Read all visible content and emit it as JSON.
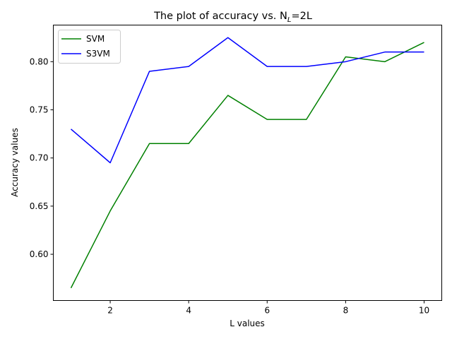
{
  "chart_data": {
    "type": "line",
    "title": "The plot of accuracy vs. N",
    "title_subscript": "L",
    "title_suffix": "=2L",
    "xlabel": "L values",
    "ylabel": "Accuracy values",
    "x": [
      1,
      2,
      3,
      4,
      5,
      6,
      7,
      8,
      9,
      10
    ],
    "xlim": [
      0.55,
      10.45
    ],
    "ylim": [
      0.552,
      0.838
    ],
    "xticks": [
      2,
      4,
      6,
      8,
      10
    ],
    "yticks": [
      0.6,
      0.65,
      0.7,
      0.75,
      0.8
    ],
    "xtick_labels": [
      "2",
      "4",
      "6",
      "8",
      "10"
    ],
    "ytick_labels": [
      "0.60",
      "0.65",
      "0.70",
      "0.75",
      "0.80"
    ],
    "grid": false,
    "legend_position": "top-left",
    "series": [
      {
        "name": "SVM",
        "color": "#008000",
        "values": [
          0.565,
          0.645,
          0.715,
          0.715,
          0.765,
          0.74,
          0.74,
          0.805,
          0.8,
          0.82
        ]
      },
      {
        "name": "S3VM",
        "color": "#0000ff",
        "values": [
          0.73,
          0.695,
          0.79,
          0.795,
          0.825,
          0.795,
          0.795,
          0.8,
          0.81,
          0.81
        ]
      }
    ]
  }
}
